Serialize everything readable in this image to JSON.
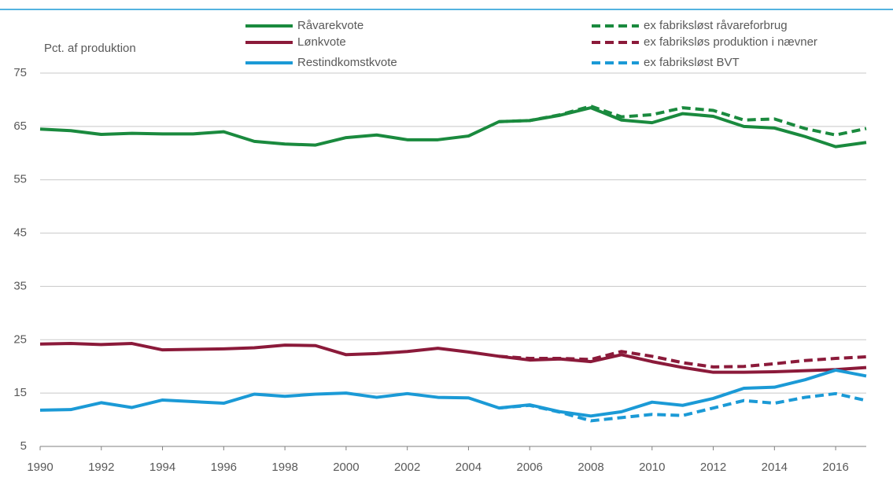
{
  "chart_data": {
    "type": "line",
    "y_label": "Pct. af produktion",
    "x": [
      1990,
      1991,
      1992,
      1993,
      1994,
      1995,
      1996,
      1997,
      1998,
      1999,
      2000,
      2001,
      2002,
      2003,
      2004,
      2005,
      2006,
      2007,
      2008,
      2009,
      2010,
      2011,
      2012,
      2013,
      2014,
      2015,
      2016,
      2017
    ],
    "xlim": [
      1990,
      2017
    ],
    "xticks": [
      1990,
      1992,
      1994,
      1996,
      1998,
      2000,
      2002,
      2004,
      2006,
      2008,
      2010,
      2012,
      2014,
      2016
    ],
    "ylim": [
      5,
      75
    ],
    "yticks": [
      5,
      15,
      25,
      35,
      45,
      55,
      65,
      75
    ],
    "grid": true,
    "series": [
      {
        "name": "Råvarekvote",
        "color": "#1a8a3e",
        "dashed": false,
        "values": [
          64.5,
          64.2,
          63.5,
          63.7,
          63.6,
          63.6,
          64,
          62.2,
          61.7,
          61.5,
          62.9,
          63.4,
          62.5,
          62.5,
          63.2,
          65.9,
          66.1,
          67.1,
          68.5,
          66.2,
          65.7,
          67.4,
          66.9,
          65,
          64.7,
          63.1,
          61.2,
          62
        ]
      },
      {
        "name": "Lønkvote",
        "color": "#8b1a3a",
        "dashed": false,
        "values": [
          24.2,
          24.3,
          24.1,
          24.3,
          23.1,
          23.2,
          23.3,
          23.5,
          24,
          23.9,
          22.2,
          22.4,
          22.8,
          23.4,
          22.7,
          21.9,
          21.2,
          21.4,
          20.9,
          22.2,
          20.9,
          19.8,
          18.9,
          18.9,
          19,
          19.2,
          19.4,
          19.8
        ]
      },
      {
        "name": "Restindkomstkvote",
        "color": "#1b9ad6",
        "dashed": false,
        "values": [
          11.8,
          11.9,
          13.2,
          12.3,
          13.7,
          13.4,
          13.1,
          14.8,
          14.4,
          14.8,
          15,
          14.2,
          14.9,
          14.2,
          14.1,
          12.2,
          12.8,
          11.5,
          10.7,
          11.5,
          13.3,
          12.7,
          14,
          15.9,
          16.1,
          17.5,
          19.3,
          18.2
        ]
      },
      {
        "name": "ex fabriksløst råvareforbrug",
        "color": "#1a8a3e",
        "dashed": true,
        "values": [
          null,
          null,
          null,
          null,
          null,
          null,
          null,
          null,
          null,
          null,
          null,
          null,
          null,
          null,
          null,
          65.9,
          66.1,
          67.2,
          68.8,
          66.8,
          67.2,
          68.5,
          68,
          66.2,
          66.4,
          64.6,
          63.4,
          64.6
        ]
      },
      {
        "name": "ex fabriksløs produktion i nævner",
        "color": "#8b1a3a",
        "dashed": true,
        "values": [
          null,
          null,
          null,
          null,
          null,
          null,
          null,
          null,
          null,
          null,
          null,
          null,
          null,
          null,
          null,
          21.9,
          21.5,
          21.5,
          21.3,
          22.8,
          21.9,
          20.7,
          19.9,
          20,
          20.5,
          21.1,
          21.5,
          21.8
        ]
      },
      {
        "name": "ex fabriksløst BVT",
        "color": "#1b9ad6",
        "dashed": true,
        "values": [
          null,
          null,
          null,
          null,
          null,
          null,
          null,
          null,
          null,
          null,
          null,
          null,
          null,
          null,
          null,
          12.2,
          12.7,
          11.4,
          9.8,
          10.4,
          11,
          10.8,
          12.2,
          13.6,
          13.1,
          14.2,
          14.9,
          13.6
        ]
      }
    ]
  }
}
